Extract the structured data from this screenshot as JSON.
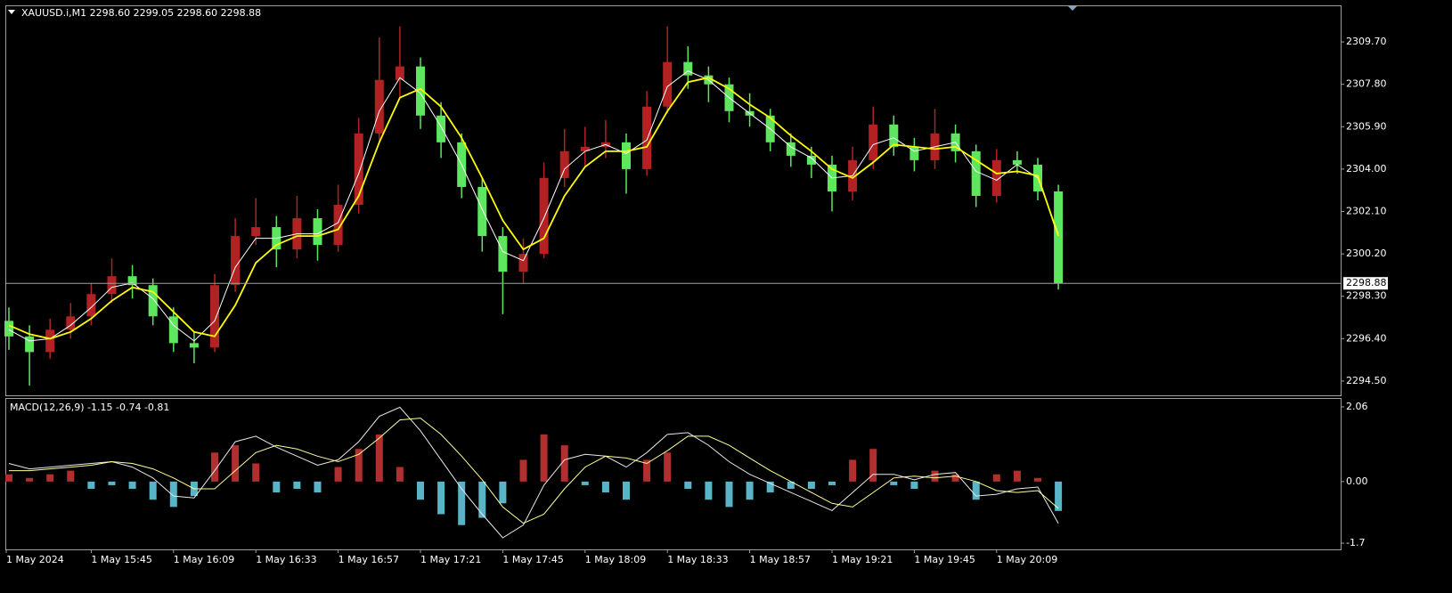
{
  "chart_data": [
    {
      "type": "candlestick",
      "title": "XAUUSD.i,M1 2298.60 2299.05 2298.60 2298.88",
      "categories": [
        "1 May 2024",
        null,
        null,
        null,
        "1 May 15:45",
        null,
        null,
        null,
        "1 May 16:09",
        null,
        null,
        null,
        "1 May 16:33",
        null,
        null,
        null,
        "1 May 16:57",
        null,
        null,
        null,
        "1 May 17:21",
        null,
        null,
        null,
        "1 May 17:45",
        null,
        null,
        null,
        "1 May 18:09",
        null,
        null,
        null,
        "1 May 18:33",
        null,
        null,
        null,
        "1 May 18:57",
        null,
        null,
        null,
        "1 May 19:21",
        null,
        null,
        null,
        "1 May 19:45",
        null,
        null,
        null,
        "1 May 20:09",
        null,
        null,
        null
      ],
      "open": [
        2297.2,
        2296.5,
        2295.8,
        2296.8,
        2297.4,
        2298.4,
        2299.2,
        2298.8,
        2297.4,
        2296.2,
        2296.0,
        2298.8,
        2301.0,
        2301.4,
        2300.4,
        2301.8,
        2300.6,
        2302.4,
        2305.6,
        2308.0,
        2308.6,
        2306.4,
        2305.2,
        2303.2,
        2301.0,
        2299.4,
        2300.2,
        2303.6,
        2304.8,
        2305.0,
        2305.2,
        2304.0,
        2306.8,
        2308.8,
        2308.2,
        2307.8,
        2306.6,
        2306.4,
        2305.2,
        2304.6,
        2304.2,
        2303.0,
        2304.4,
        2306.0,
        2305.0,
        2304.4,
        2305.6,
        2304.8,
        2302.8,
        2304.4,
        2304.2,
        2303.0
      ],
      "high": [
        2297.8,
        2297.0,
        2297.3,
        2298.0,
        2298.9,
        2300.0,
        2299.7,
        2299.1,
        2297.8,
        2296.7,
        2299.3,
        2301.8,
        2302.7,
        2301.9,
        2302.8,
        2302.2,
        2303.3,
        2306.3,
        2309.9,
        2310.4,
        2309.0,
        2307.0,
        2305.6,
        2303.6,
        2301.4,
        2300.9,
        2304.3,
        2305.8,
        2305.9,
        2306.2,
        2305.6,
        2307.5,
        2310.4,
        2309.5,
        2308.6,
        2308.1,
        2307.4,
        2306.7,
        2305.6,
        2305.0,
        2304.6,
        2305.0,
        2306.8,
        2306.4,
        2305.4,
        2306.7,
        2306.0,
        2305.1,
        2304.9,
        2304.8,
        2304.5,
        2303.3
      ],
      "low": [
        2295.9,
        2294.3,
        2295.5,
        2296.4,
        2297.0,
        2298.0,
        2298.2,
        2297.0,
        2295.8,
        2295.3,
        2295.8,
        2298.5,
        2300.6,
        2299.6,
        2300.0,
        2299.9,
        2300.3,
        2302.0,
        2305.2,
        2307.2,
        2305.8,
        2304.5,
        2302.7,
        2300.3,
        2297.5,
        2298.9,
        2300.0,
        2303.2,
        2304.1,
        2304.5,
        2302.9,
        2303.7,
        2306.5,
        2307.6,
        2307.0,
        2306.1,
        2305.9,
        2304.8,
        2304.1,
        2303.6,
        2302.1,
        2302.6,
        2304.0,
        2304.6,
        2303.9,
        2304.0,
        2304.3,
        2302.3,
        2302.5,
        2303.8,
        2302.6,
        2298.6
      ],
      "close": [
        2296.5,
        2295.8,
        2296.8,
        2297.4,
        2298.4,
        2299.2,
        2298.8,
        2297.4,
        2296.2,
        2296.0,
        2298.8,
        2301.0,
        2301.4,
        2300.4,
        2301.8,
        2300.6,
        2302.4,
        2305.6,
        2308.0,
        2308.6,
        2306.4,
        2305.2,
        2303.2,
        2301.0,
        2299.4,
        2300.2,
        2303.6,
        2304.8,
        2305.0,
        2305.2,
        2304.0,
        2306.8,
        2308.8,
        2308.2,
        2307.8,
        2306.6,
        2306.4,
        2305.2,
        2304.6,
        2304.2,
        2303.0,
        2304.4,
        2306.0,
        2305.0,
        2304.4,
        2305.6,
        2304.8,
        2302.8,
        2304.4,
        2304.2,
        2303.0,
        2298.88
      ],
      "up_color": "#b22222",
      "down_color": "#5ee65e",
      "overlays": [
        {
          "color": "#ffffff",
          "values": [
            2296.8,
            2296.3,
            2296.4,
            2297.0,
            2297.8,
            2298.7,
            2298.9,
            2298.2,
            2297.0,
            2296.3,
            2297.2,
            2299.6,
            2300.9,
            2300.9,
            2301.1,
            2301.1,
            2301.6,
            2303.8,
            2306.6,
            2308.1,
            2307.4,
            2305.9,
            2304.2,
            2302.2,
            2300.3,
            2299.9,
            2301.8,
            2304.0,
            2304.8,
            2305.1,
            2304.7,
            2305.3,
            2307.7,
            2308.4,
            2308.0,
            2307.2,
            2306.5,
            2305.8,
            2305.0,
            2304.5,
            2303.6,
            2303.7,
            2305.1,
            2305.4,
            2304.8,
            2305.0,
            2305.2,
            2303.9,
            2303.5,
            2304.2,
            2303.6,
            2301.1
          ]
        },
        {
          "color": "#ffff00",
          "values": [
            2297.0,
            2296.6,
            2296.4,
            2296.7,
            2297.3,
            2298.1,
            2298.7,
            2298.5,
            2297.6,
            2296.7,
            2296.5,
            2297.9,
            2299.8,
            2300.6,
            2301.0,
            2301.0,
            2301.3,
            2302.8,
            2305.2,
            2307.2,
            2307.6,
            2306.8,
            2305.4,
            2303.6,
            2301.7,
            2300.4,
            2300.9,
            2302.8,
            2304.1,
            2304.8,
            2304.8,
            2305.0,
            2306.6,
            2307.9,
            2308.1,
            2307.6,
            2306.9,
            2306.3,
            2305.5,
            2304.8,
            2304.0,
            2303.6,
            2304.3,
            2305.1,
            2305.0,
            2304.9,
            2305.0,
            2304.4,
            2303.8,
            2303.9,
            2303.7,
            2301.0
          ]
        }
      ],
      "last_price": {
        "value": 2298.88,
        "label": "2298.88"
      },
      "ylim": [
        2293.86,
        2311.3
      ],
      "yticks": [
        {
          "value": 2309.7,
          "label": "2309.70"
        },
        {
          "value": 2307.8,
          "label": "2307.80"
        },
        {
          "value": 2305.9,
          "label": "2305.90"
        },
        {
          "value": 2304,
          "label": "2304.00"
        },
        {
          "value": 2302.1,
          "label": "2302.10"
        },
        {
          "value": 2300.2,
          "label": "2300.20"
        },
        {
          "value": 2298.3,
          "label": "2298.30"
        },
        {
          "value": 2296.4,
          "label": "2296.40"
        },
        {
          "value": 2294.5,
          "label": "2294.50"
        }
      ]
    },
    {
      "type": "macd",
      "title": "MACD(12,26,9) -1.15 -0.74 -0.81",
      "histogram": {
        "up_color": "#b03030",
        "down_color": "#5ab4c8",
        "values": [
          0.2,
          0.1,
          0.2,
          0.3,
          -0.2,
          -0.1,
          -0.2,
          -0.5,
          -0.7,
          -0.4,
          0.8,
          1.0,
          0.5,
          -0.3,
          -0.2,
          -0.3,
          0.4,
          0.9,
          1.3,
          0.4,
          -0.5,
          -0.9,
          -1.2,
          -1.0,
          -0.6,
          0.6,
          1.3,
          1.0,
          -0.1,
          -0.3,
          -0.5,
          0.6,
          0.8,
          -0.2,
          -0.5,
          -0.7,
          -0.5,
          -0.3,
          -0.2,
          -0.2,
          -0.1,
          0.6,
          0.9,
          -0.1,
          -0.2,
          0.3,
          0.2,
          -0.5,
          0.2,
          0.3,
          0.1,
          -0.81
        ]
      },
      "lines": [
        {
          "color": "#e8e8e8",
          "values": [
            0.5,
            0.35,
            0.4,
            0.45,
            0.5,
            0.55,
            0.4,
            0.1,
            -0.4,
            -0.45,
            0.3,
            1.1,
            1.25,
            0.95,
            0.7,
            0.45,
            0.6,
            1.1,
            1.8,
            2.05,
            1.4,
            0.6,
            -0.2,
            -0.9,
            -1.55,
            -1.2,
            -0.1,
            0.6,
            0.75,
            0.7,
            0.4,
            0.8,
            1.3,
            1.35,
            1.0,
            0.55,
            0.2,
            -0.05,
            -0.3,
            -0.55,
            -0.8,
            -0.3,
            0.2,
            0.2,
            0.05,
            0.2,
            0.25,
            -0.4,
            -0.35,
            -0.2,
            -0.15,
            -1.15
          ]
        },
        {
          "color": "#ffff99",
          "values": [
            0.3,
            0.3,
            0.35,
            0.4,
            0.45,
            0.55,
            0.5,
            0.35,
            0.1,
            -0.2,
            -0.2,
            0.3,
            0.8,
            1.0,
            0.9,
            0.7,
            0.55,
            0.75,
            1.2,
            1.7,
            1.75,
            1.3,
            0.7,
            0.05,
            -0.7,
            -1.15,
            -0.9,
            -0.2,
            0.4,
            0.7,
            0.65,
            0.5,
            0.85,
            1.25,
            1.25,
            1.0,
            0.65,
            0.3,
            0.0,
            -0.3,
            -0.6,
            -0.7,
            -0.3,
            0.1,
            0.15,
            0.1,
            0.15,
            0.0,
            -0.25,
            -0.3,
            -0.25,
            -0.74
          ]
        }
      ],
      "ylim": [
        -1.87,
        2.28
      ],
      "yticks": [
        2.06,
        {
          "value": 0,
          "label": "0.00"
        },
        -1.7
      ]
    }
  ]
}
